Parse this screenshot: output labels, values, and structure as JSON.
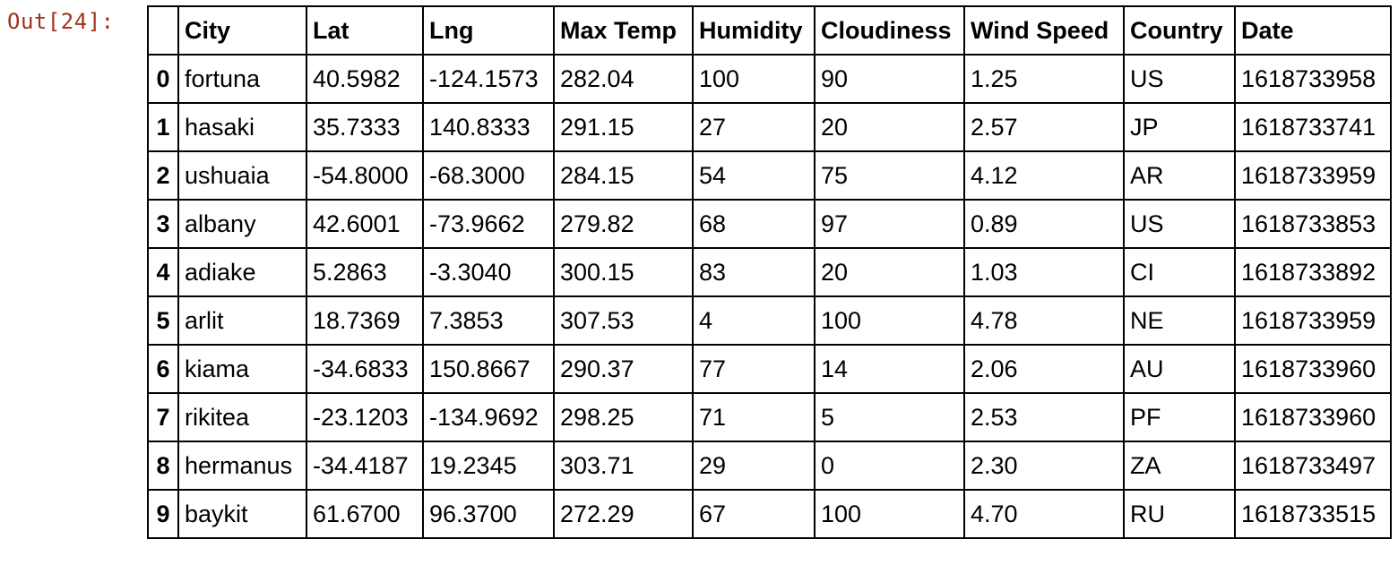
{
  "prompt": "Out[24]:",
  "table": {
    "columns": [
      "",
      "City",
      "Lat",
      "Lng",
      "Max Temp",
      "Humidity",
      "Cloudiness",
      "Wind Speed",
      "Country",
      "Date"
    ],
    "rows": [
      {
        "index": "0",
        "cells": [
          "fortuna",
          "40.5982",
          "-124.1573",
          "282.04",
          "100",
          "90",
          "1.25",
          "US",
          "1618733958"
        ]
      },
      {
        "index": "1",
        "cells": [
          "hasaki",
          "35.7333",
          "140.8333",
          "291.15",
          "27",
          "20",
          "2.57",
          "JP",
          "1618733741"
        ]
      },
      {
        "index": "2",
        "cells": [
          "ushuaia",
          "-54.8000",
          "-68.3000",
          "284.15",
          "54",
          "75",
          "4.12",
          "AR",
          "1618733959"
        ]
      },
      {
        "index": "3",
        "cells": [
          "albany",
          "42.6001",
          "-73.9662",
          "279.82",
          "68",
          "97",
          "0.89",
          "US",
          "1618733853"
        ]
      },
      {
        "index": "4",
        "cells": [
          "adiake",
          "5.2863",
          "-3.3040",
          "300.15",
          "83",
          "20",
          "1.03",
          "CI",
          "1618733892"
        ]
      },
      {
        "index": "5",
        "cells": [
          "arlit",
          "18.7369",
          "7.3853",
          "307.53",
          "4",
          "100",
          "4.78",
          "NE",
          "1618733959"
        ]
      },
      {
        "index": "6",
        "cells": [
          "kiama",
          "-34.6833",
          "150.8667",
          "290.37",
          "77",
          "14",
          "2.06",
          "AU",
          "1618733960"
        ]
      },
      {
        "index": "7",
        "cells": [
          "rikitea",
          "-23.1203",
          "-134.9692",
          "298.25",
          "71",
          "5",
          "2.53",
          "PF",
          "1618733960"
        ]
      },
      {
        "index": "8",
        "cells": [
          "hermanus",
          "-34.4187",
          "19.2345",
          "303.71",
          "29",
          "0",
          "2.30",
          "ZA",
          "1618733497"
        ]
      },
      {
        "index": "9",
        "cells": [
          "baykit",
          "61.6700",
          "96.3700",
          "272.29",
          "67",
          "100",
          "4.70",
          "RU",
          "1618733515"
        ]
      }
    ]
  }
}
